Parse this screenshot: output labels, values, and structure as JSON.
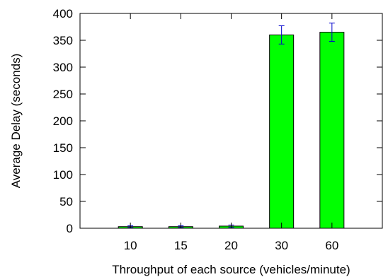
{
  "chart_data": {
    "type": "bar",
    "title": "",
    "xlabel": "Throughput of each source (vehicles/minute)",
    "ylabel": "Average Delay (seconds)",
    "categories": [
      "10",
      "15",
      "20",
      "30",
      "60"
    ],
    "values": [
      3,
      3,
      4,
      360,
      365
    ],
    "error": [
      1.5,
      1.5,
      2,
      17,
      17
    ],
    "ylim": [
      0,
      400
    ],
    "yticks": [
      "0",
      "50",
      "100",
      "150",
      "200",
      "250",
      "300",
      "350",
      "400"
    ],
    "yticks_values": [
      0,
      50,
      100,
      150,
      200,
      250,
      300,
      350,
      400
    ],
    "grid": false,
    "legend": "none",
    "colors": {
      "bar_fill": "#00ff00",
      "bar_stroke": "#000000",
      "error_bar": "#0000cc",
      "axis": "#000000"
    }
  }
}
